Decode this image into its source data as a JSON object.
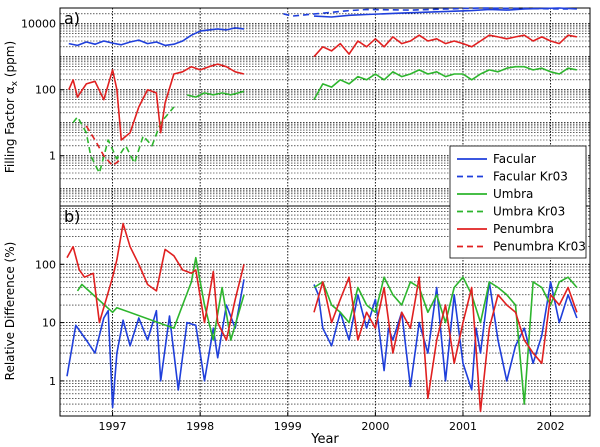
{
  "chart_data": [
    {
      "type": "line",
      "panel_label": "a)",
      "ylabel": "Filling Factor α",
      "ylabel_sub": "x",
      "ylabel_unit": " (ppm)",
      "yscale": "log",
      "ylim": [
        0.03,
        30000
      ],
      "xlim": [
        1996.4,
        2002.45
      ],
      "yticks": [
        {
          "value": 10000,
          "label": "10000"
        },
        {
          "value": 100,
          "label": "100"
        },
        {
          "value": 1,
          "label": "1"
        }
      ],
      "series": [
        {
          "name": "Facular",
          "color": "#1f3fdb",
          "dash": "solid",
          "x": [
            1996.5,
            1996.6,
            1996.7,
            1996.8,
            1996.9,
            1997.0,
            1997.1,
            1997.2,
            1997.3,
            1997.4,
            1997.5,
            1997.6,
            1997.7,
            1997.8,
            1997.9,
            1998.0,
            1998.1,
            1998.2,
            1998.3,
            1998.4,
            1998.5
          ],
          "y": [
            2500,
            2200,
            2800,
            2400,
            3000,
            2600,
            2300,
            2800,
            3200,
            2500,
            2800,
            2200,
            2400,
            3000,
            4500,
            6000,
            6500,
            7000,
            6500,
            7500,
            7000
          ]
        },
        {
          "name": "Facular Kr03",
          "color": "#1f3fdb",
          "dash": "dashed",
          "x": [
            1998.95,
            1999.05,
            1999.7,
            1999.9,
            2000.4,
            2000.8,
            2001.2,
            2001.7,
            2002.2
          ],
          "y": [
            20000,
            17000,
            25000,
            27000,
            26000,
            28000,
            30000,
            29000,
            28000
          ]
        },
        {
          "name": "Umbra",
          "color": "#2db52d",
          "dash": "solid",
          "x": [
            1997.85,
            1997.95,
            1998.05,
            1998.15,
            1998.25,
            1998.35,
            1998.5
          ],
          "y": [
            70,
            60,
            80,
            70,
            80,
            70,
            90
          ]
        },
        {
          "name": "Umbra Kr03",
          "color": "#2db52d",
          "dash": "dashed",
          "x": [
            1996.55,
            1996.6,
            1996.7,
            1996.75,
            1996.85,
            1996.95,
            1997.05,
            1997.15,
            1997.25,
            1997.35,
            1997.45,
            1997.55,
            1997.7
          ],
          "y": [
            10,
            15,
            5,
            1,
            0.3,
            3,
            0.8,
            2,
            0.6,
            4,
            2,
            10,
            30
          ]
        },
        {
          "name": "Penumbra",
          "color": "#e02020",
          "dash": "solid",
          "x": [
            1996.5,
            1996.55,
            1996.6,
            1996.7,
            1996.8,
            1996.9,
            1997.0,
            1997.05,
            1997.1,
            1997.2,
            1997.3,
            1997.4,
            1997.5,
            1997.55,
            1997.6,
            1997.7,
            1997.8,
            1997.9,
            1998.0,
            1998.1,
            1998.2,
            1998.3,
            1998.4,
            1998.5
          ],
          "y": [
            100,
            200,
            60,
            150,
            180,
            50,
            400,
            100,
            3,
            5,
            30,
            100,
            80,
            5,
            40,
            300,
            350,
            500,
            400,
            500,
            600,
            500,
            350,
            300
          ]
        },
        {
          "name": "Penumbra Kr03",
          "color": "#e02020",
          "dash": "dashed",
          "x": [
            1996.7,
            1996.8,
            1996.9,
            1997.0,
            1997.1
          ],
          "y": [
            8,
            3,
            1,
            0.5,
            0.8
          ]
        },
        {
          "name": "Facular",
          "color": "#1f3fdb",
          "dash": "solid",
          "x": [
            1999.3,
            1999.5,
            1999.7,
            1999.9,
            2000.1,
            2000.3,
            2000.5,
            2000.7,
            2000.9,
            2001.1,
            2001.3,
            2001.5,
            2001.7,
            2001.9,
            2002.1,
            2002.3
          ],
          "y": [
            17000,
            16000,
            18000,
            19000,
            20000,
            21000,
            22000,
            23000,
            24000,
            25000,
            27000,
            26000,
            28000,
            29000,
            30000,
            28000
          ]
        },
        {
          "name": "Umbra",
          "color": "#2db52d",
          "dash": "solid",
          "x": [
            1999.3,
            1999.4,
            1999.5,
            1999.6,
            1999.7,
            1999.8,
            1999.9,
            2000.0,
            2000.1,
            2000.2,
            2000.3,
            2000.4,
            2000.5,
            2000.6,
            2000.7,
            2000.8,
            2000.9,
            2001.0,
            2001.1,
            2001.2,
            2001.3,
            2001.4,
            2001.5,
            2001.6,
            2001.7,
            2001.8,
            2001.9,
            2002.0,
            2002.1,
            2002.2,
            2002.3
          ],
          "y": [
            50,
            150,
            120,
            200,
            150,
            250,
            200,
            300,
            200,
            350,
            250,
            300,
            400,
            300,
            350,
            250,
            300,
            300,
            200,
            300,
            400,
            350,
            450,
            500,
            500,
            400,
            450,
            350,
            300,
            450,
            400
          ]
        },
        {
          "name": "Penumbra",
          "color": "#e02020",
          "dash": "solid",
          "x": [
            1999.3,
            1999.4,
            1999.5,
            1999.6,
            1999.7,
            1999.8,
            1999.9,
            2000.0,
            2000.1,
            2000.2,
            2000.3,
            2000.4,
            2000.5,
            2000.6,
            2000.7,
            2000.8,
            2000.9,
            2001.0,
            2001.1,
            2001.2,
            2001.3,
            2001.4,
            2001.5,
            2001.6,
            2001.7,
            2001.8,
            2001.9,
            2002.0,
            2002.1,
            2002.2,
            2002.3
          ],
          "y": [
            1000,
            2000,
            1500,
            2500,
            1200,
            3000,
            2000,
            3500,
            2000,
            4000,
            2500,
            3000,
            4500,
            3000,
            3500,
            2500,
            3000,
            2500,
            2000,
            3000,
            4500,
            4000,
            3500,
            4000,
            4500,
            3000,
            4000,
            3000,
            2500,
            4500,
            4000
          ]
        }
      ]
    },
    {
      "type": "line",
      "panel_label": "b)",
      "ylabel": "Relative Difference (%)",
      "xlabel": "Year",
      "yscale": "log",
      "ylim": [
        0.25,
        1000
      ],
      "xlim": [
        1996.4,
        2002.45
      ],
      "xticks": [
        {
          "value": 1997,
          "label": "1997"
        },
        {
          "value": 1998,
          "label": "1998"
        },
        {
          "value": 1999,
          "label": "1999"
        },
        {
          "value": 2000,
          "label": "2000"
        },
        {
          "value": 2001,
          "label": "2001"
        },
        {
          "value": 2002,
          "label": "2002"
        }
      ],
      "yticks": [
        {
          "value": 100,
          "label": "100"
        },
        {
          "value": 10,
          "label": "10"
        },
        {
          "value": 1,
          "label": "1"
        }
      ],
      "series": [
        {
          "name": "Facular",
          "color": "#1f3fdb",
          "dash": "solid",
          "x": [
            1996.48,
            1996.58,
            1996.7,
            1996.8,
            1996.9,
            1996.95,
            1997.0,
            1997.05,
            1997.12,
            1997.2,
            1997.3,
            1997.4,
            1997.5,
            1997.55,
            1997.65,
            1997.75,
            1997.85,
            1997.95,
            1998.05,
            1998.15,
            1998.2,
            1998.3,
            1998.4,
            1998.5
          ],
          "y": [
            1.2,
            9,
            5,
            3,
            12,
            16,
            0.35,
            3,
            11,
            4,
            12,
            5,
            16,
            1,
            13,
            0.7,
            10,
            9,
            1,
            8,
            2.5,
            20,
            8,
            55
          ]
        },
        {
          "name": "Umbra",
          "color": "#2db52d",
          "dash": "solid",
          "x": [
            1996.6,
            1996.65,
            1997.0,
            1997.05,
            1997.7,
            1997.8,
            1997.9,
            1997.95,
            1998.05,
            1998.15,
            1998.25,
            1998.35,
            1998.5
          ],
          "y": [
            35,
            45,
            15,
            18,
            8,
            20,
            50,
            130,
            20,
            5,
            40,
            5,
            30
          ]
        },
        {
          "name": "Penumbra",
          "color": "#e02020",
          "dash": "solid",
          "x": [
            1996.48,
            1996.55,
            1996.62,
            1996.68,
            1996.78,
            1996.85,
            1997.0,
            1997.05,
            1997.12,
            1997.2,
            1997.3,
            1997.4,
            1997.5,
            1997.6,
            1997.7,
            1997.8,
            1997.9,
            1997.95,
            1998.05,
            1998.15,
            1998.2,
            1998.3,
            1998.4,
            1998.5
          ],
          "y": [
            130,
            200,
            80,
            60,
            70,
            10,
            60,
            120,
            500,
            200,
            100,
            45,
            35,
            180,
            140,
            80,
            70,
            80,
            10,
            75,
            10,
            5,
            25,
            100
          ]
        },
        {
          "name": "Facular",
          "color": "#1f3fdb",
          "dash": "solid",
          "x": [
            1999.3,
            1999.35,
            1999.4,
            1999.5,
            1999.6,
            1999.7,
            1999.8,
            1999.9,
            2000.0,
            2000.1,
            2000.15,
            2000.2,
            2000.3,
            2000.4,
            2000.5,
            2000.6,
            2000.7,
            2000.8,
            2000.9,
            2001.0,
            2001.1,
            2001.15,
            2001.2,
            2001.3,
            2001.4,
            2001.5,
            2001.6,
            2001.7,
            2001.8,
            2001.9,
            2002.0,
            2002.1,
            2002.2,
            2002.3
          ],
          "y": [
            45,
            30,
            8,
            4,
            15,
            5,
            30,
            8,
            25,
            1.5,
            8,
            5,
            15,
            0.8,
            10,
            3,
            40,
            1,
            30,
            2,
            0.7,
            8,
            3,
            50,
            5,
            1,
            4,
            8,
            2,
            6,
            50,
            10,
            30,
            12
          ]
        },
        {
          "name": "Umbra",
          "color": "#2db52d",
          "dash": "solid",
          "x": [
            1999.3,
            1999.4,
            1999.5,
            1999.6,
            1999.7,
            1999.8,
            1999.9,
            2000.0,
            2000.1,
            2000.2,
            2000.3,
            2000.4,
            2000.5,
            2000.6,
            2000.7,
            2000.8,
            2000.9,
            2001.0,
            2001.1,
            2001.2,
            2001.3,
            2001.4,
            2001.5,
            2001.6,
            2001.7,
            2001.8,
            2001.9,
            2002.0,
            2002.1,
            2002.2,
            2002.3
          ],
          "y": [
            40,
            50,
            20,
            15,
            10,
            40,
            20,
            15,
            60,
            30,
            20,
            50,
            40,
            15,
            30,
            10,
            40,
            60,
            30,
            10,
            50,
            40,
            30,
            20,
            0.4,
            50,
            40,
            20,
            50,
            60,
            40
          ]
        },
        {
          "name": "Penumbra",
          "color": "#e02020",
          "dash": "solid",
          "x": [
            1999.3,
            1999.4,
            1999.5,
            1999.6,
            1999.7,
            1999.8,
            1999.9,
            2000.0,
            2000.1,
            2000.2,
            2000.3,
            2000.4,
            2000.5,
            2000.6,
            2000.7,
            2000.8,
            2000.9,
            2001.0,
            2001.1,
            2001.2,
            2001.3,
            2001.4,
            2001.5,
            2001.6,
            2001.7,
            2001.8,
            2001.9,
            2002.0,
            2002.1,
            2002.2,
            2002.3
          ],
          "y": [
            15,
            50,
            10,
            25,
            60,
            5,
            15,
            8,
            40,
            3,
            15,
            8,
            60,
            0.5,
            5,
            20,
            2,
            10,
            40,
            0.3,
            8,
            30,
            20,
            15,
            5,
            3,
            2,
            30,
            20,
            40,
            15
          ]
        }
      ]
    }
  ],
  "legend": {
    "placement": "right",
    "entries": [
      {
        "label": "Facular",
        "color": "#1f3fdb",
        "dash": "solid"
      },
      {
        "label": "Facular Kr03",
        "color": "#1f3fdb",
        "dash": "dashed"
      },
      {
        "label": "Umbra",
        "color": "#2db52d",
        "dash": "solid"
      },
      {
        "label": "Umbra Kr03",
        "color": "#2db52d",
        "dash": "dashed"
      },
      {
        "label": "Penumbra",
        "color": "#e02020",
        "dash": "solid"
      },
      {
        "label": "Penumbra Kr03",
        "color": "#e02020",
        "dash": "dashed"
      }
    ]
  }
}
